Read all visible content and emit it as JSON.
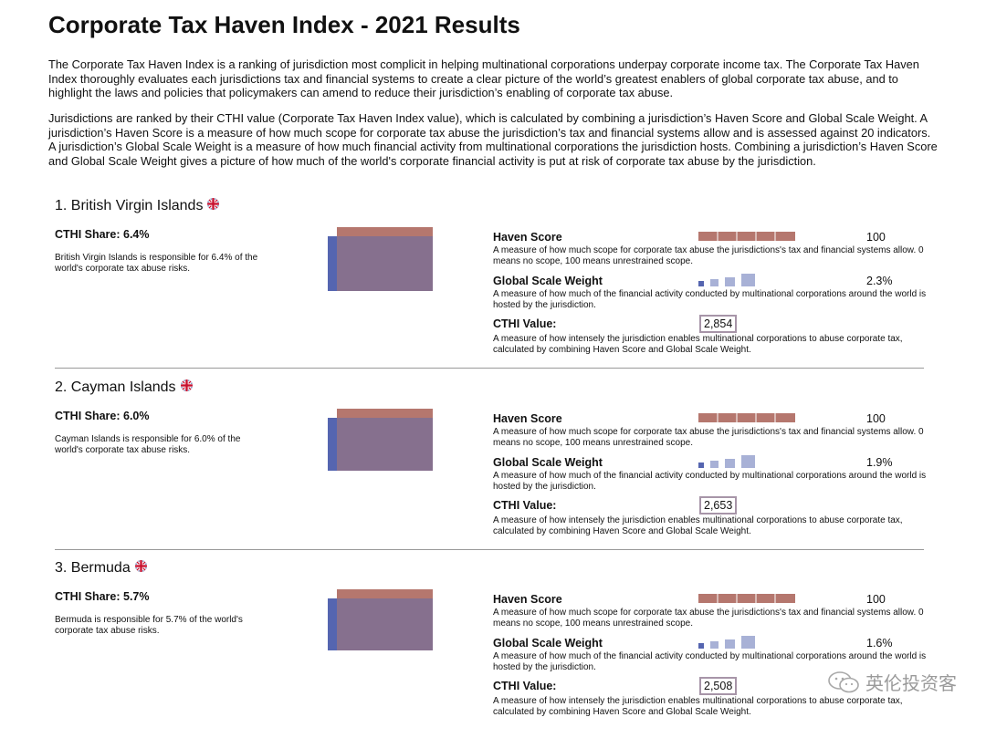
{
  "title": "Corporate Tax Haven Index - 2021 Results",
  "intro": [
    "The Corporate Tax Haven Index is a ranking of jurisdiction most complicit in helping multinational corporations underpay corporate income tax. The Corporate Tax Haven Index thoroughly evaluates each jurisdictions tax and financial systems to create a clear picture of the world’s greatest enablers of global corporate tax abuse, and to highlight the laws and policies that policymakers can amend to reduce their jurisdiction’s enabling of corporate tax abuse.",
    "Jurisdictions are ranked by their CTHI value (Corporate Tax Haven Index value), which is calculated by combining a jurisdiction’s Haven Score and Global Scale Weight. A jurisdiction’s Haven Score is a measure of how much scope for corporate tax abuse the jurisdiction’s tax and financial systems allow and is assessed against 20 indicators. A jurisdiction’s Global Scale Weight is a measure of how much financial activity from multinational corporations the jurisdiction hosts. Combining a jurisdiction’s Haven Score and Global Scale Weight gives a picture of how much of the world's corporate financial activity is put at risk of corporate tax abuse by the jurisdiction."
  ],
  "labels": {
    "haven_score": "Haven Score",
    "haven_score_desc": "A measure of how much scope for corporate tax abuse the jurisdictions's tax and financial systems allow. 0 means no scope, 100 means unrestrained scope.",
    "gsw": "Global Scale Weight",
    "gsw_desc": "A measure of how much of the financial activity conducted by multinational corporations around the world is hosted by the jurisdiction.",
    "cthi_value": "CTHI Value:",
    "cthi_desc": "A measure of how intensely the jurisdiction enables multinational corporations to abuse corporate tax, calculated by combining Haven Score and Global Scale Weight."
  },
  "colors": {
    "haven": "#b5776e",
    "share_main": "#86708e",
    "share_side": "#5565b0",
    "gsw_dark": "#5565b0",
    "gsw_light": "#a8b1d6",
    "cthi_border": "#a795a8"
  },
  "entries": [
    {
      "title": "1. British Virgin Islands",
      "share_label": "CTHI Share: 6.4%",
      "share_desc": "British Virgin Islands is responsible for 6.4% of the world's corporate tax abuse risks.",
      "share_pct": 6.4,
      "haven_score": "100",
      "haven_score_num": 100,
      "gsw": "2.3%",
      "cthi": "2,854"
    },
    {
      "title": "2. Cayman Islands",
      "share_label": "CTHI Share: 6.0%",
      "share_desc": "Cayman Islands is responsible for 6.0% of the world's corporate tax abuse risks.",
      "share_pct": 6.0,
      "haven_score": "100",
      "haven_score_num": 100,
      "gsw": "1.9%",
      "cthi": "2,653"
    },
    {
      "title": "3. Bermuda",
      "share_label": "CTHI Share: 5.7%",
      "share_desc": "Bermuda is responsible for 5.7% of the world's corporate tax abuse risks.",
      "share_pct": 5.7,
      "haven_score": "100",
      "haven_score_num": 100,
      "gsw": "1.6%",
      "cthi": "2,508"
    }
  ],
  "watermark": "英伦投资客"
}
